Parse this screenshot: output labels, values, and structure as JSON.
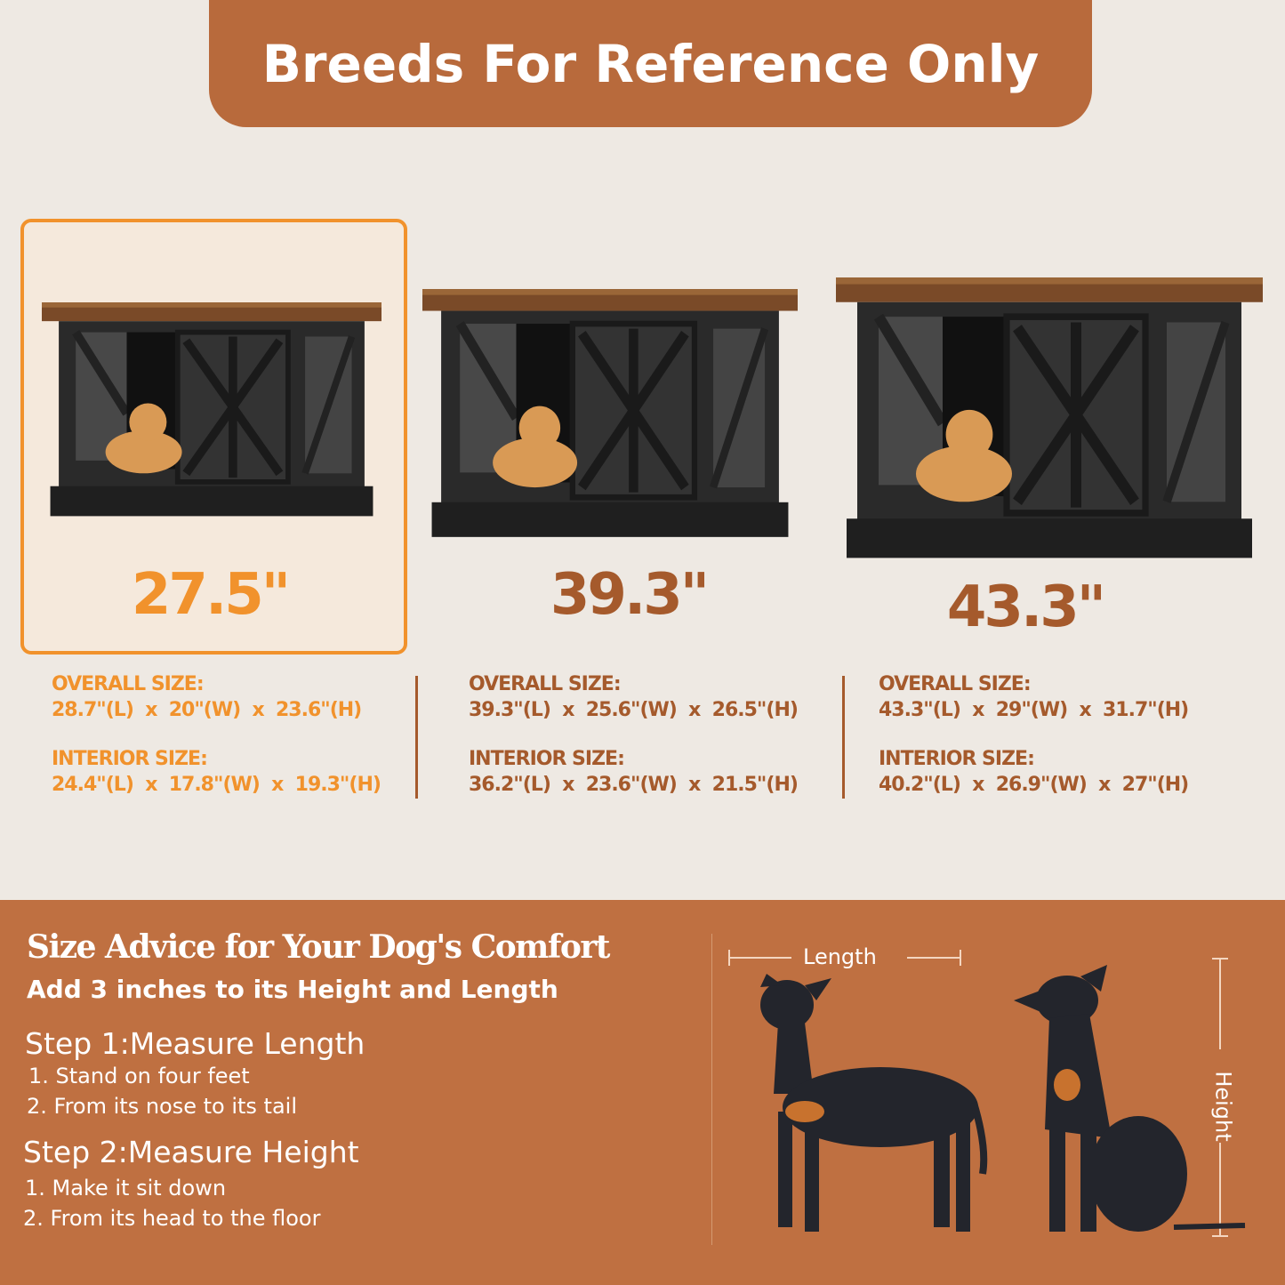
{
  "header": {
    "title": "Breeds For Reference Only"
  },
  "colors": {
    "band": "#b86a3c",
    "highlight": "#f1922c",
    "brown_text": "#a55a2c",
    "panel": "#bf7041"
  },
  "products": [
    {
      "size": "27.5\"",
      "overall_label": "OVERALL SIZE:",
      "overall": "28.7\"(L)  x  20\"(W)  x  23.6\"(H)",
      "interior_label": "INTERIOR SIZE:",
      "interior": "24.4\"(L)  x  17.8\"(W)  x  19.3\"(H)",
      "selected": true
    },
    {
      "size": "39.3\"",
      "overall_label": "OVERALL SIZE:",
      "overall": "39.3\"(L)  x  25.6\"(W)  x  26.5\"(H)",
      "interior_label": "INTERIOR SIZE:",
      "interior": "36.2\"(L)  x  23.6\"(W)  x  21.5\"(H)",
      "selected": false
    },
    {
      "size": "43.3\"",
      "overall_label": "OVERALL SIZE:",
      "overall": "43.3\"(L)  x  29\"(W)  x  31.7\"(H)",
      "interior_label": "INTERIOR SIZE:",
      "interior": "40.2\"(L)  x  26.9\"(W)  x  27\"(H)",
      "selected": false
    }
  ],
  "advice": {
    "title": "Size Advice for Your Dog's Comfort",
    "subtitle": "Add 3 inches to its Height and Length",
    "step1": {
      "title": "Step 1:Measure Length",
      "items": [
        "1. Stand on four feet",
        "2. From its nose to its tail"
      ]
    },
    "step2": {
      "title": "Step 2:Measure Height",
      "items": [
        "1. Make it sit down",
        "2. From its head to the floor"
      ]
    },
    "length_label": "Length",
    "height_label": "Height"
  }
}
